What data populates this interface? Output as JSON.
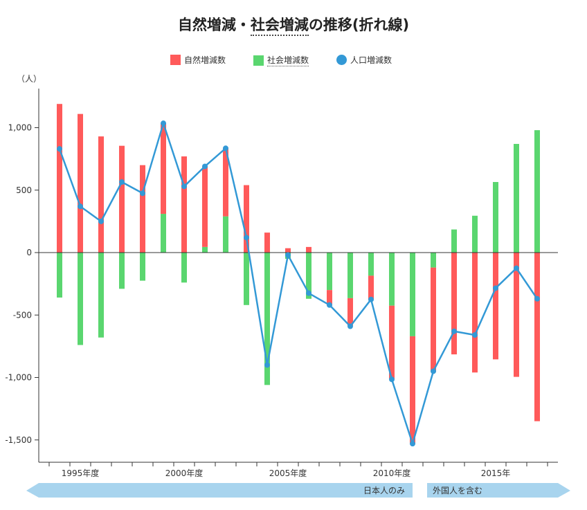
{
  "title_before": "自然増減・",
  "title_underlined": "社会増減",
  "title_after": "の推移(折れ線)",
  "chart_data": {
    "type": "bar+line",
    "title": "自然増減・社会増減の推移(折れ線)",
    "ylabel": "（人）",
    "ylim": [
      -1700,
      1300
    ],
    "yticks": [
      1000,
      500,
      0,
      -500,
      -1000,
      -1500
    ],
    "ytick_labels": [
      "1,000",
      "500",
      "0",
      "-500",
      "-1,000",
      "-1,500"
    ],
    "grid": false,
    "legend_position": "top-center",
    "x_labels": [
      {
        "index": 1,
        "label": "1995年度"
      },
      {
        "index": 6,
        "label": "2000年度"
      },
      {
        "index": 11,
        "label": "2005年度"
      },
      {
        "index": 16,
        "label": "2010年度"
      },
      {
        "index": 21,
        "label": "2015年"
      }
    ],
    "categories": [
      0,
      1,
      2,
      3,
      4,
      5,
      6,
      7,
      8,
      9,
      10,
      11,
      12,
      13,
      14,
      15,
      16,
      17,
      18,
      19,
      20,
      21,
      22,
      23
    ],
    "series": [
      {
        "name": "自然増減数",
        "type": "bar",
        "color": "#ff5a5a",
        "values": [
          1190,
          1110,
          930,
          855,
          700,
          725,
          770,
          645,
          545,
          540,
          160,
          35,
          45,
          -125,
          -220,
          -195,
          -590,
          -860,
          -835,
          -815,
          -960,
          -855,
          -995,
          -1350
        ]
      },
      {
        "name": "社会増減数",
        "type": "bar",
        "color": "#5ad66f",
        "values": [
          -360,
          -740,
          -680,
          -290,
          -225,
          310,
          -240,
          45,
          290,
          -420,
          -1060,
          -50,
          -370,
          -300,
          -365,
          -185,
          -425,
          -670,
          -120,
          185,
          295,
          565,
          870,
          980
        ]
      },
      {
        "name": "人口増減数",
        "type": "line",
        "color": "#3399d6",
        "values": [
          830,
          370,
          250,
          565,
          475,
          1035,
          530,
          690,
          835,
          120,
          -900,
          -20,
          -325,
          -420,
          -590,
          -375,
          -1015,
          -1530,
          -950,
          -630,
          -660,
          -285,
          -125,
          -370
        ]
      }
    ]
  },
  "legend": {
    "natural": "自然増減数",
    "social": "社会増減数",
    "population": "人口増減数"
  },
  "bottom_bands": {
    "left_label": "日本人のみ",
    "right_label": "外国人を含む",
    "color": "#a8d4ee"
  }
}
